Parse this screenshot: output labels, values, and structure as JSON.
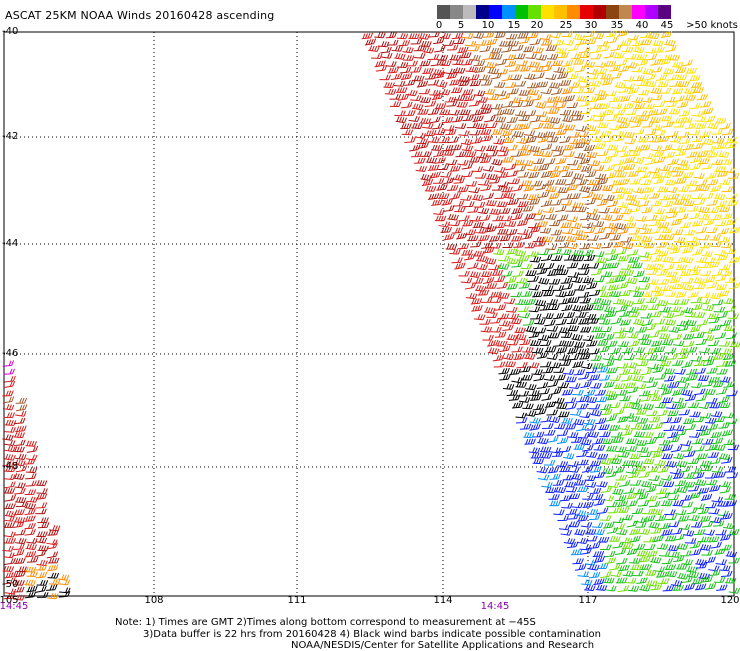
{
  "title": "ASCAT 25KM NOAA Winds 20160428 ascending",
  "colorbar": {
    "colors": [
      "#555555",
      "#888888",
      "#bbbbbb",
      "#00008b",
      "#0000ff",
      "#0090ff",
      "#00c000",
      "#66e000",
      "#ffe000",
      "#ffc000",
      "#ff8c00",
      "#e60000",
      "#b00000",
      "#8b4513",
      "#c08850",
      "#ff00ff",
      "#b000ff",
      "#5a0080"
    ],
    "ticks": [
      "0",
      "5",
      "10",
      "15",
      "20",
      "25",
      "30",
      "35",
      "40",
      "45",
      ">50 knots"
    ]
  },
  "map": {
    "lat_labels": [
      "-40",
      "-42",
      "-44",
      "-46",
      "-48",
      "-50"
    ],
    "lon_labels": [
      "105",
      "108",
      "111",
      "114",
      "117",
      "120"
    ],
    "times": [
      "14:45",
      "14:45"
    ]
  },
  "notes": [
    "Note: 1) Times are GMT 2)Times along bottom correspond to measurement at −45S",
    "3)Data buffer is 22 hrs from 20160428 4) Black wind barbs indicate possible contamination",
    "NOAA/NESDIS/Center for Satellite Applications and Research"
  ]
}
